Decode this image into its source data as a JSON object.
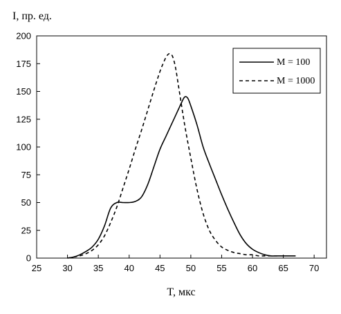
{
  "chart_data": {
    "type": "line",
    "ylabel": "I,  пр. ед.",
    "xlabel": "T,  мкс",
    "xlim": [
      25,
      72
    ],
    "ylim": [
      0,
      200
    ],
    "xticks": [
      25,
      30,
      35,
      40,
      45,
      50,
      55,
      60,
      65,
      70
    ],
    "yticks": [
      0,
      25,
      50,
      75,
      100,
      125,
      150,
      175,
      200
    ],
    "grid": false,
    "legend_position": "top-right",
    "series": [
      {
        "name": "M = 100",
        "style": "solid",
        "x": [
          30,
          31,
          32,
          33,
          34,
          35,
          36,
          37,
          38,
          39,
          40,
          41,
          42,
          43,
          44,
          45,
          46,
          47,
          47.5,
          48,
          48.5,
          49,
          49.5,
          50,
          51,
          52,
          53,
          54,
          55,
          56,
          57,
          58,
          59,
          60,
          61,
          62,
          63,
          64,
          65,
          66,
          67
        ],
        "y": [
          0,
          1,
          3,
          6,
          10,
          17,
          29,
          45,
          50,
          50,
          50,
          51,
          55,
          66,
          82,
          98,
          110,
          122,
          128,
          134,
          140,
          145,
          144,
          137,
          120,
          100,
          85,
          71,
          57,
          44,
          32,
          21,
          13,
          8,
          5,
          3,
          2,
          2,
          2,
          2,
          2
        ]
      },
      {
        "name": "M = 1000",
        "style": "dashed",
        "x": [
          30,
          31,
          32,
          33,
          34,
          35,
          36,
          37,
          38,
          39,
          40,
          41,
          42,
          43,
          44,
          45,
          45.5,
          46,
          46.5,
          47,
          47.5,
          48,
          49,
          50,
          51,
          52,
          53,
          54,
          55,
          56,
          57,
          58,
          59,
          60,
          61,
          62,
          63,
          64
        ],
        "y": [
          0,
          1,
          2,
          4,
          7,
          12,
          20,
          32,
          46,
          63,
          80,
          98,
          115,
          133,
          151,
          168,
          175,
          181,
          184,
          182,
          172,
          155,
          120,
          90,
          62,
          40,
          25,
          16,
          10,
          7,
          5,
          4,
          3,
          3,
          2,
          2,
          2,
          2
        ]
      }
    ]
  },
  "legend": {
    "entries": [
      {
        "label": "M = 100"
      },
      {
        "label": "M = 1000"
      }
    ]
  }
}
